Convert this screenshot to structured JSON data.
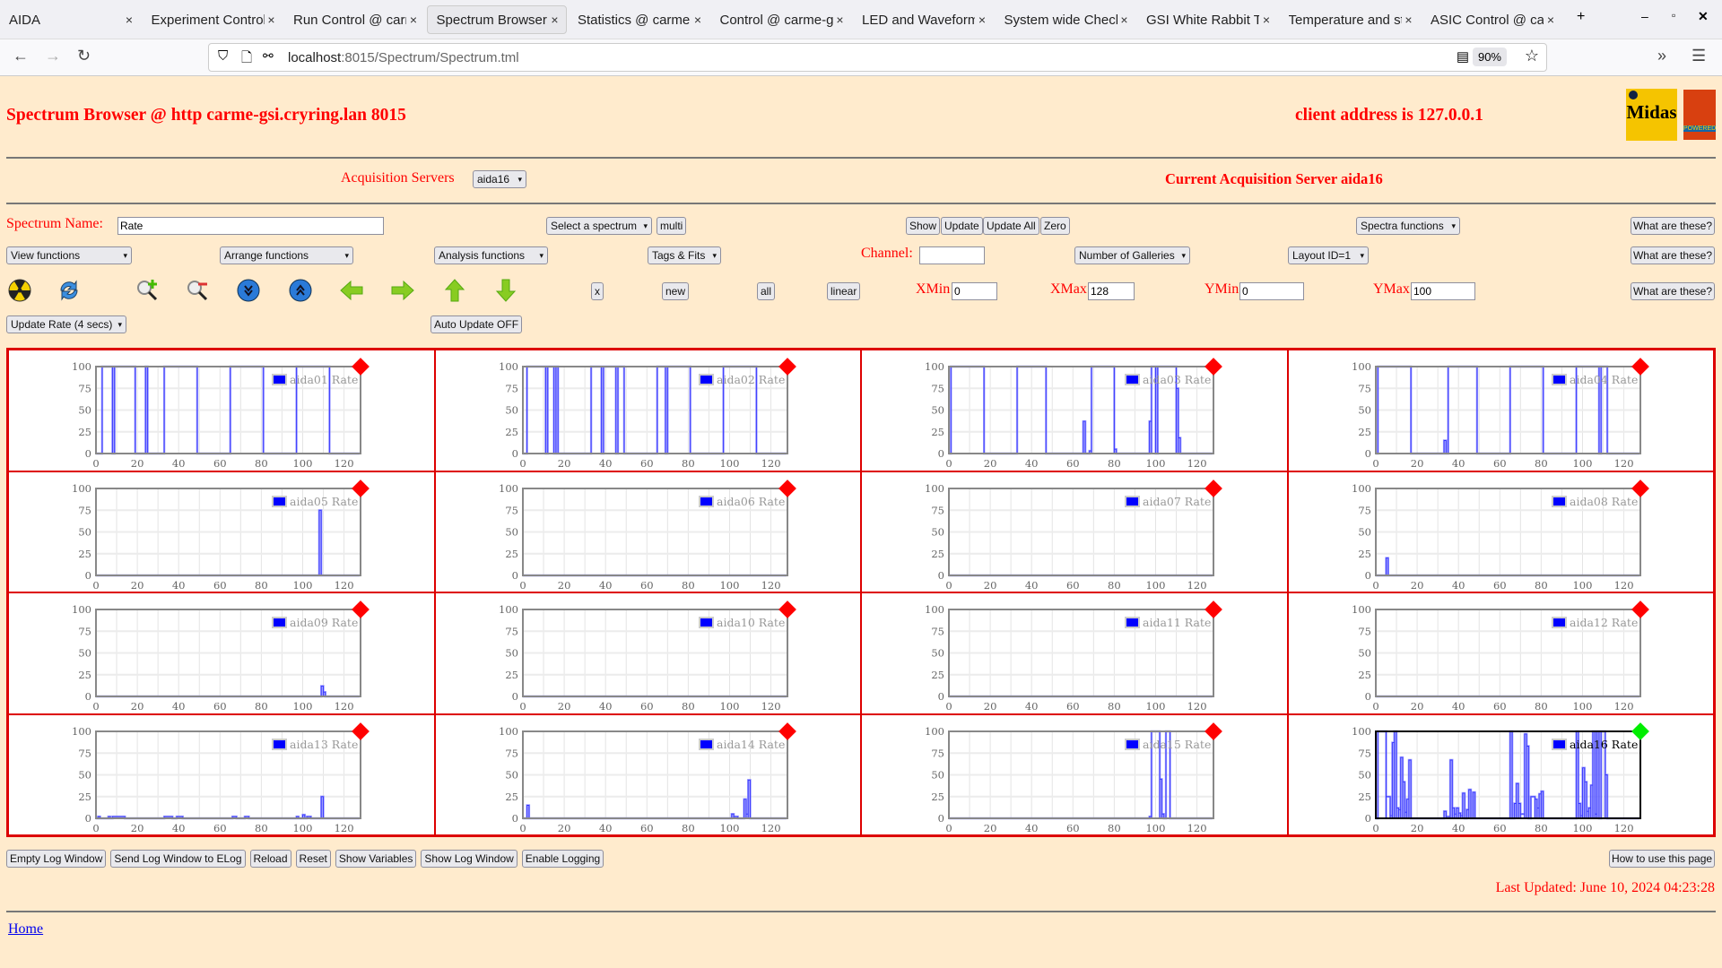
{
  "browser": {
    "tabs": [
      {
        "label": "AIDA"
      },
      {
        "label": "Experiment Control"
      },
      {
        "label": "Run Control @ carme"
      },
      {
        "label": "Spectrum Browser",
        "active": true
      },
      {
        "label": "Statistics @ carme"
      },
      {
        "label": "Control @ carme-g"
      },
      {
        "label": "LED and Waveform"
      },
      {
        "label": "System wide Check"
      },
      {
        "label": "GSI White Rabbit T"
      },
      {
        "label": "Temperature and st"
      },
      {
        "label": "ASIC Control @ car"
      }
    ],
    "url_host": "localhost",
    "url_path": ":8015/Spectrum/Spectrum.tml",
    "zoom": "90%"
  },
  "header": {
    "title": "Spectrum Browser @ http carme-gsi.cryring.lan 8015",
    "client": "client address is 127.0.0.1",
    "logos": [
      "Midas",
      "TCL POWERED"
    ]
  },
  "acq": {
    "label": "Acquisition Servers",
    "selected": "aida16",
    "current": "Current Acquisition Server aida16"
  },
  "controls": {
    "spectrum_name_label": "Spectrum Name:",
    "spectrum_name": "Rate",
    "select_spectrum": "Select a spectrum",
    "multi": "multi",
    "show": "Show",
    "update": "Update",
    "update_all": "Update All",
    "zero": "Zero",
    "spectra_functions": "Spectra functions",
    "what": "What are these?",
    "view_functions": "View functions",
    "arrange_functions": "Arrange functions",
    "analysis_functions": "Analysis functions",
    "tags_fits": "Tags & Fits",
    "channel_label": "Channel:",
    "channel": "",
    "galleries": "Number of Galleries",
    "layout": "Layout ID=1",
    "x": "x",
    "new": "new",
    "all": "all",
    "linear": "linear",
    "xmin_label": "XMin",
    "xmin": "0",
    "xmax_label": "XMax",
    "xmax": "128",
    "ymin_label": "YMin",
    "ymin": "0",
    "ymax_label": "YMax",
    "ymax": "100",
    "update_rate": "Update Rate (4 secs)",
    "auto_update": "Auto Update OFF",
    "icons": [
      "radiation-icon",
      "refresh-icon",
      "zoom-in-icon",
      "zoom-out-icon",
      "scroll-down-icon",
      "scroll-up-icon",
      "arrow-left-icon",
      "arrow-right-icon",
      "arrow-up-icon",
      "arrow-down-icon"
    ]
  },
  "footer": {
    "buttons": [
      "Empty Log Window",
      "Send Log Window to ELog",
      "Reload",
      "Reset",
      "Show Variables",
      "Show Log Window",
      "Enable Logging"
    ],
    "how_to": "How to use this page",
    "last_updated": "Last Updated: June 10, 2024 04:23:28",
    "home": "Home"
  },
  "colors": {
    "accent": "#ff0000",
    "status_ok": "#00ee00",
    "status_bad": "#ff0000",
    "line": "#6666ff",
    "page_bg": "#ffebcd"
  },
  "chart_data": [
    {
      "type": "line",
      "name": "aida01 Rate",
      "status": "red",
      "xlim": [
        0,
        128
      ],
      "ylim": [
        0,
        100
      ],
      "xticks": [
        0,
        20,
        40,
        60,
        80,
        100,
        120
      ],
      "yticks": [
        0,
        25,
        50,
        75,
        100
      ],
      "grid": true,
      "legend": "top-right",
      "segments": [
        [
          3,
          8,
          100
        ],
        [
          9,
          19,
          100
        ],
        [
          24,
          25,
          100
        ],
        [
          33,
          49,
          100
        ],
        [
          65,
          81,
          100
        ],
        [
          97,
          113,
          100
        ]
      ]
    },
    {
      "type": "line",
      "name": "aida02 Rate",
      "status": "red",
      "xlim": [
        0,
        128
      ],
      "ylim": [
        0,
        100
      ],
      "xticks": [
        0,
        20,
        40,
        60,
        80,
        100,
        120
      ],
      "yticks": [
        0,
        25,
        50,
        75,
        100
      ],
      "grid": true,
      "legend": "top-right",
      "segments": [
        [
          2,
          11,
          100
        ],
        [
          12,
          15,
          100
        ],
        [
          16,
          17,
          100
        ],
        [
          33,
          38,
          100
        ],
        [
          39,
          45,
          100
        ],
        [
          46,
          49,
          100
        ],
        [
          65,
          69,
          100
        ],
        [
          70,
          81,
          100
        ],
        [
          97,
          113,
          100
        ]
      ]
    },
    {
      "type": "line",
      "name": "aida03 Rate",
      "status": "red",
      "xlim": [
        0,
        128
      ],
      "ylim": [
        0,
        100
      ],
      "xticks": [
        0,
        20,
        40,
        60,
        80,
        100,
        120
      ],
      "yticks": [
        0,
        25,
        50,
        75,
        100
      ],
      "grid": true,
      "legend": "top-right",
      "segments": [
        [
          1,
          17,
          100
        ],
        [
          33,
          47,
          100
        ],
        [
          65,
          66,
          37
        ],
        [
          68,
          69,
          3
        ],
        [
          69,
          80,
          100
        ],
        [
          80,
          81,
          5
        ],
        [
          97,
          98,
          37
        ],
        [
          98,
          100,
          100
        ],
        [
          101,
          110,
          100
        ],
        [
          110,
          111,
          75
        ],
        [
          111,
          112,
          18
        ]
      ]
    },
    {
      "type": "line",
      "name": "aida04 Rate",
      "status": "red",
      "xlim": [
        0,
        128
      ],
      "ylim": [
        0,
        100
      ],
      "xticks": [
        0,
        20,
        40,
        60,
        80,
        100,
        120
      ],
      "yticks": [
        0,
        25,
        50,
        75,
        100
      ],
      "grid": true,
      "legend": "top-right",
      "segments": [
        [
          1,
          17,
          100
        ],
        [
          33,
          34,
          15
        ],
        [
          35,
          49,
          100
        ],
        [
          65,
          81,
          100
        ],
        [
          97,
          108,
          100
        ],
        [
          109,
          112,
          100
        ]
      ]
    },
    {
      "type": "line",
      "name": "aida05 Rate",
      "status": "red",
      "xlim": [
        0,
        128
      ],
      "ylim": [
        0,
        100
      ],
      "xticks": [
        0,
        20,
        40,
        60,
        80,
        100,
        120
      ],
      "yticks": [
        0,
        25,
        50,
        75,
        100
      ],
      "grid": true,
      "legend": "top-right",
      "segments": [
        [
          108,
          109,
          75
        ]
      ]
    },
    {
      "type": "line",
      "name": "aida06 Rate",
      "status": "red",
      "xlim": [
        0,
        128
      ],
      "ylim": [
        0,
        100
      ],
      "xticks": [
        0,
        20,
        40,
        60,
        80,
        100,
        120
      ],
      "yticks": [
        0,
        25,
        50,
        75,
        100
      ],
      "grid": true,
      "legend": "top-right",
      "segments": []
    },
    {
      "type": "line",
      "name": "aida07 Rate",
      "status": "red",
      "xlim": [
        0,
        128
      ],
      "ylim": [
        0,
        100
      ],
      "xticks": [
        0,
        20,
        40,
        60,
        80,
        100,
        120
      ],
      "yticks": [
        0,
        25,
        50,
        75,
        100
      ],
      "grid": true,
      "legend": "top-right",
      "segments": []
    },
    {
      "type": "line",
      "name": "aida08 Rate",
      "status": "red",
      "xlim": [
        0,
        128
      ],
      "ylim": [
        0,
        100
      ],
      "xticks": [
        0,
        20,
        40,
        60,
        80,
        100,
        120
      ],
      "yticks": [
        0,
        25,
        50,
        75,
        100
      ],
      "grid": true,
      "legend": "top-right",
      "segments": [
        [
          5,
          6,
          20
        ]
      ]
    },
    {
      "type": "line",
      "name": "aida09 Rate",
      "status": "red",
      "xlim": [
        0,
        128
      ],
      "ylim": [
        0,
        100
      ],
      "xticks": [
        0,
        20,
        40,
        60,
        80,
        100,
        120
      ],
      "yticks": [
        0,
        25,
        50,
        75,
        100
      ],
      "grid": true,
      "legend": "top-right",
      "segments": [
        [
          109,
          110,
          12
        ],
        [
          110,
          111,
          5
        ]
      ]
    },
    {
      "type": "line",
      "name": "aida10 Rate",
      "status": "red",
      "xlim": [
        0,
        128
      ],
      "ylim": [
        0,
        100
      ],
      "xticks": [
        0,
        20,
        40,
        60,
        80,
        100,
        120
      ],
      "yticks": [
        0,
        25,
        50,
        75,
        100
      ],
      "grid": true,
      "legend": "top-right",
      "segments": []
    },
    {
      "type": "line",
      "name": "aida11 Rate",
      "status": "red",
      "xlim": [
        0,
        128
      ],
      "ylim": [
        0,
        100
      ],
      "xticks": [
        0,
        20,
        40,
        60,
        80,
        100,
        120
      ],
      "yticks": [
        0,
        25,
        50,
        75,
        100
      ],
      "grid": true,
      "legend": "top-right",
      "segments": []
    },
    {
      "type": "line",
      "name": "aida12 Rate",
      "status": "red",
      "xlim": [
        0,
        128
      ],
      "ylim": [
        0,
        100
      ],
      "xticks": [
        0,
        20,
        40,
        60,
        80,
        100,
        120
      ],
      "yticks": [
        0,
        25,
        50,
        75,
        100
      ],
      "grid": true,
      "legend": "top-right",
      "segments": []
    },
    {
      "type": "line",
      "name": "aida13 Rate",
      "status": "red",
      "xlim": [
        0,
        128
      ],
      "ylim": [
        0,
        100
      ],
      "xticks": [
        0,
        20,
        40,
        60,
        80,
        100,
        120
      ],
      "yticks": [
        0,
        25,
        50,
        75,
        100
      ],
      "grid": true,
      "legend": "top-right",
      "segments": [
        [
          1,
          2,
          2
        ],
        [
          6,
          7,
          2
        ],
        [
          8,
          14,
          2
        ],
        [
          33,
          37,
          2
        ],
        [
          39,
          42,
          2
        ],
        [
          66,
          68,
          2
        ],
        [
          72,
          74,
          2
        ],
        [
          97,
          98,
          2
        ],
        [
          100,
          101,
          4
        ],
        [
          102,
          104,
          2
        ],
        [
          109,
          110,
          25
        ]
      ]
    },
    {
      "type": "line",
      "name": "aida14 Rate",
      "status": "red",
      "xlim": [
        0,
        128
      ],
      "ylim": [
        0,
        100
      ],
      "xticks": [
        0,
        20,
        40,
        60,
        80,
        100,
        120
      ],
      "yticks": [
        0,
        25,
        50,
        75,
        100
      ],
      "grid": true,
      "legend": "top-right",
      "segments": [
        [
          2,
          3,
          15
        ],
        [
          101,
          102,
          5
        ],
        [
          102,
          104,
          2
        ],
        [
          107,
          108,
          22
        ],
        [
          108,
          109,
          5
        ],
        [
          109,
          110,
          44
        ]
      ]
    },
    {
      "type": "line",
      "name": "aida15 Rate",
      "status": "red",
      "xlim": [
        0,
        128
      ],
      "ylim": [
        0,
        100
      ],
      "xticks": [
        0,
        20,
        40,
        60,
        80,
        100,
        120
      ],
      "yticks": [
        0,
        25,
        50,
        75,
        100
      ],
      "grid": true,
      "legend": "top-right",
      "segments": [
        [
          97,
          98,
          2
        ],
        [
          98,
          102,
          100
        ],
        [
          102,
          103,
          45
        ],
        [
          103,
          104,
          5
        ],
        [
          105,
          107,
          100
        ]
      ]
    },
    {
      "type": "line",
      "name": "aida16 Rate",
      "status": "green",
      "selected": true,
      "xlim": [
        0,
        128
      ],
      "ylim": [
        0,
        100
      ],
      "xticks": [
        0,
        20,
        40,
        60,
        80,
        100,
        120
      ],
      "yticks": [
        0,
        25,
        50,
        75,
        100
      ],
      "grid": true,
      "legend": "top-right",
      "segments": [
        [
          1,
          5,
          100
        ],
        [
          5,
          7,
          25
        ],
        [
          7,
          8,
          3
        ],
        [
          8,
          9,
          87
        ],
        [
          9,
          10,
          100
        ],
        [
          10,
          11,
          12
        ],
        [
          11,
          12,
          10
        ],
        [
          12,
          13,
          70
        ],
        [
          13,
          14,
          42
        ],
        [
          14,
          15,
          7
        ],
        [
          15,
          16,
          22
        ],
        [
          16,
          17,
          67
        ],
        [
          33,
          34,
          8
        ],
        [
          34,
          36,
          2
        ],
        [
          36,
          37,
          67
        ],
        [
          37,
          38,
          12
        ],
        [
          38,
          39,
          5
        ],
        [
          39,
          40,
          12
        ],
        [
          40,
          41,
          6
        ],
        [
          41,
          42,
          3
        ],
        [
          42,
          43,
          29
        ],
        [
          44,
          45,
          10
        ],
        [
          45,
          46,
          33
        ],
        [
          47,
          48,
          30
        ],
        [
          65,
          66,
          100
        ],
        [
          67,
          68,
          17
        ],
        [
          68,
          69,
          40
        ],
        [
          69,
          70,
          17
        ],
        [
          70,
          72,
          5
        ],
        [
          72,
          73,
          97
        ],
        [
          73,
          74,
          83
        ],
        [
          75,
          77,
          25
        ],
        [
          77,
          78,
          22
        ],
        [
          78,
          79,
          12
        ],
        [
          79,
          80,
          28
        ],
        [
          80,
          81,
          31
        ],
        [
          97,
          98,
          100
        ],
        [
          98,
          99,
          17
        ],
        [
          99,
          100,
          3
        ],
        [
          100,
          101,
          58
        ],
        [
          101,
          102,
          42
        ],
        [
          102,
          103,
          8
        ],
        [
          103,
          104,
          12
        ],
        [
          104,
          105,
          38
        ],
        [
          105,
          106,
          100
        ],
        [
          106,
          107,
          5
        ],
        [
          107,
          108,
          100
        ],
        [
          109,
          111,
          100
        ],
        [
          111,
          112,
          50
        ]
      ]
    }
  ]
}
